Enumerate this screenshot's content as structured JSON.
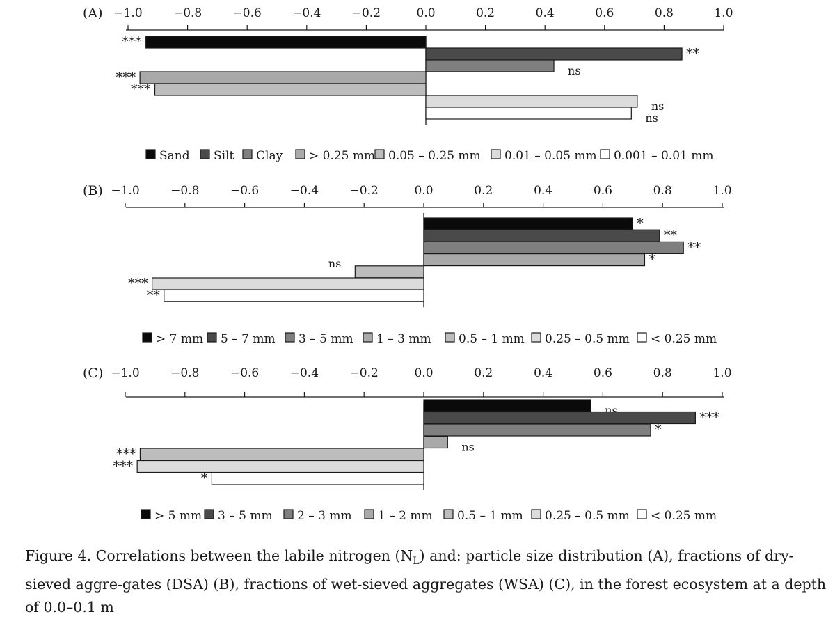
{
  "chart_data": [
    {
      "type": "bar",
      "orientation": "horizontal",
      "panel_label": "(A)",
      "xlim": [
        -1.0,
        1.0
      ],
      "ticks": [
        "−1.0",
        "−0.8",
        "−0.6",
        "−0.4",
        "−0.2",
        "0.0",
        "0.2",
        "0.4",
        "0.6",
        "0.8",
        "1.0"
      ],
      "tick_values": [
        -1.0,
        -0.8,
        -0.6,
        -0.4,
        -0.2,
        0.0,
        0.2,
        0.4,
        0.6,
        0.8,
        1.0
      ],
      "legend_position": "bottom",
      "series": [
        {
          "name": "Sand",
          "value": -0.94,
          "significance": "***",
          "color": "#0a0a0a"
        },
        {
          "name": "Silt",
          "value": 0.86,
          "significance": "**",
          "color": "#4a4a4a"
        },
        {
          "name": "Clay",
          "value": 0.43,
          "significance": "ns",
          "color": "#7f7f7f"
        },
        {
          "name": "> 0.25 mm",
          "value": -0.96,
          "significance": "***",
          "color": "#a9a9a9"
        },
        {
          "name": "0.05 – 0.25 mm",
          "value": -0.91,
          "significance": "***",
          "color": "#bdbdbd"
        },
        {
          "name": "0.01 – 0.05 mm",
          "value": 0.71,
          "significance": "ns",
          "color": "#dcdcdc"
        },
        {
          "name": "0.001 – 0.01 mm",
          "value": 0.69,
          "significance": "ns",
          "color": "#ffffff"
        }
      ]
    },
    {
      "type": "bar",
      "orientation": "horizontal",
      "panel_label": "(B)",
      "xlim": [
        -1.0,
        1.0
      ],
      "ticks": [
        "−1.0",
        "−0.8",
        "−0.6",
        "−0.4",
        "−0.2",
        "0.0",
        "0.2",
        "0.4",
        "0.6",
        "0.8",
        "1.0"
      ],
      "tick_values": [
        -1.0,
        -0.8,
        -0.6,
        -0.4,
        -0.2,
        0.0,
        0.2,
        0.4,
        0.6,
        0.8,
        1.0
      ],
      "legend_position": "bottom",
      "series": [
        {
          "name": "> 7 mm",
          "value": 0.7,
          "significance": "*",
          "color": "#0a0a0a"
        },
        {
          "name": "5 – 7 mm",
          "value": 0.79,
          "significance": "**",
          "color": "#4a4a4a"
        },
        {
          "name": "3 – 5 mm",
          "value": 0.87,
          "significance": "**",
          "color": "#7f7f7f"
        },
        {
          "name": "1 – 3 mm",
          "value": 0.74,
          "significance": "*",
          "color": "#a9a9a9"
        },
        {
          "name": "0.5 – 1 mm",
          "value": -0.23,
          "significance": "ns",
          "color": "#bdbdbd"
        },
        {
          "name": "0.25 – 0.5 mm",
          "value": -0.91,
          "significance": "***",
          "color": "#dcdcdc"
        },
        {
          "name": "< 0.25 mm",
          "value": -0.87,
          "significance": "**",
          "color": "#ffffff"
        }
      ]
    },
    {
      "type": "bar",
      "orientation": "horizontal",
      "panel_label": "(C)",
      "xlim": [
        -1.0,
        1.0
      ],
      "ticks": [
        "−1.0",
        "−0.8",
        "−0.6",
        "−0.4",
        "−0.2",
        "0.0",
        "0.2",
        "0.4",
        "0.6",
        "0.8",
        "1.0"
      ],
      "tick_values": [
        -1.0,
        -0.8,
        -0.6,
        -0.4,
        -0.2,
        0.0,
        0.2,
        0.4,
        0.6,
        0.8,
        1.0
      ],
      "legend_position": "bottom",
      "series": [
        {
          "name": "> 5 mm",
          "value": 0.56,
          "significance": "ns",
          "color": "#0a0a0a"
        },
        {
          "name": "3 – 5 mm",
          "value": 0.91,
          "significance": "***",
          "color": "#4a4a4a"
        },
        {
          "name": "2 – 3 mm",
          "value": 0.76,
          "significance": "*",
          "color": "#7f7f7f"
        },
        {
          "name": "1 – 2 mm",
          "value": 0.08,
          "significance": "ns",
          "color": "#a9a9a9"
        },
        {
          "name": "0.5 – 1 mm",
          "value": -0.95,
          "significance": "***",
          "color": "#bdbdbd"
        },
        {
          "name": "0.25 – 0.5 mm",
          "value": -0.96,
          "significance": "***",
          "color": "#dcdcdc"
        },
        {
          "name": "< 0.25 mm",
          "value": -0.71,
          "significance": "*",
          "color": "#ffffff"
        }
      ]
    }
  ],
  "caption": {
    "prefix": "Figure 4. Correlations between the labile nitrogen (N",
    "subscript": "L",
    "suffix": ") and: particle size distribution (A), fractions of dry-sieved aggre-gates (DSA) (B), fractions of wet-sieved aggregates (WSA) (C), in the forest ecosystem at a depth of 0.0–0.1 m"
  }
}
